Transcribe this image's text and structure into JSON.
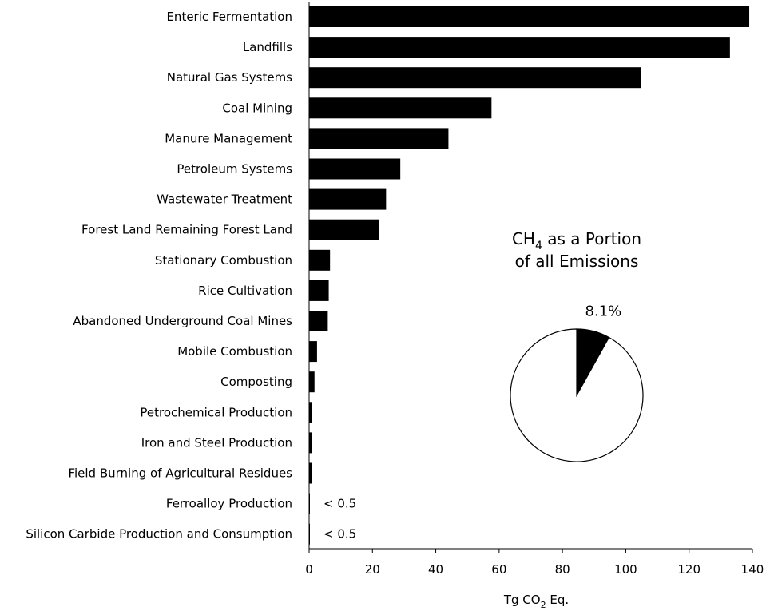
{
  "chart_data": [
    {
      "type": "bar",
      "orientation": "horizontal",
      "categories": [
        "Enteric Fermentation",
        "Landfills",
        "Natural Gas Systems",
        "Coal Mining",
        "Manure Management",
        "Petroleum Systems",
        "Wastewater Treatment",
        "Forest Land Remaining Forest Land",
        "Stationary Combustion",
        "Rice Cultivation",
        "Abandoned Underground Coal Mines",
        "Mobile Combustion",
        "Composting",
        "Petrochemical Production",
        "Iron and Steel Production",
        "Field Burning of Agricultural Residues",
        "Ferroalloy Production",
        "Silicon Carbide Production and Consumption"
      ],
      "values": [
        139.0,
        132.9,
        104.9,
        57.6,
        44.0,
        28.8,
        24.3,
        22.0,
        6.6,
        6.2,
        5.9,
        2.5,
        1.7,
        1.0,
        0.9,
        0.9,
        0.2,
        0.2
      ],
      "value_labels": [
        "",
        "",
        "",
        "",
        "",
        "",
        "",
        "",
        "",
        "",
        "",
        "",
        "",
        "",
        "",
        "",
        "< 0.5",
        "< 0.5"
      ],
      "xlabel": {
        "prefix": "Tg CO",
        "sub": "2",
        "suffix": " Eq."
      },
      "xlim": [
        0,
        140
      ],
      "xticks": [
        0,
        20,
        40,
        60,
        80,
        100,
        120,
        140
      ],
      "grid": false,
      "bar_color": "#000000"
    },
    {
      "type": "pie",
      "title": {
        "line1_prefix": "CH",
        "line1_sub": "4",
        "line1_suffix": " as a Portion",
        "line2": "of all Emissions"
      },
      "slices": [
        {
          "value": 8.1,
          "label": "8.1%",
          "color": "#000000"
        },
        {
          "value": 91.9,
          "label": "",
          "color": "#ffffff"
        }
      ]
    }
  ]
}
